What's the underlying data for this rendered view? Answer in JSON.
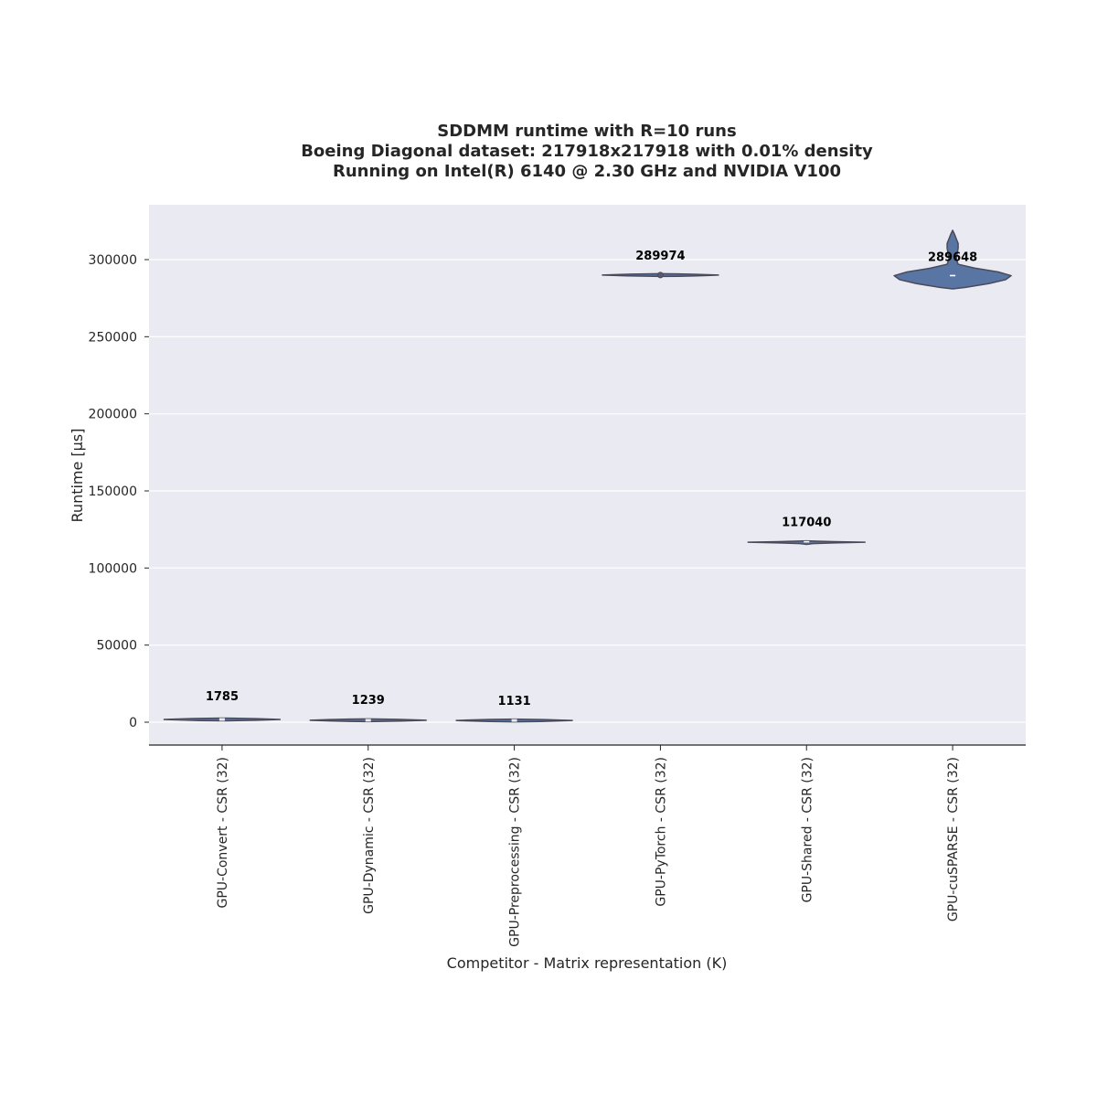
{
  "chart_data": {
    "type": "violin",
    "title_lines": [
      "SDDMM runtime with R=10 runs",
      "Boeing Diagonal dataset: 217918x217918 with 0.01% density",
      "Running on Intel(R) 6140 @ 2.30 GHz and NVIDIA V100"
    ],
    "xlabel": "Competitor - Matrix representation (K)",
    "ylabel": "Runtime [µs]",
    "ylim": [
      -15000,
      335000
    ],
    "yticks": [
      0,
      50000,
      100000,
      150000,
      200000,
      250000,
      300000
    ],
    "ytick_labels": [
      "0",
      "50000",
      "100000",
      "150000",
      "200000",
      "250000",
      "300000"
    ],
    "grid": true,
    "colors": {
      "plot_bg": "#eaeaf2",
      "violin_fill": "#5975a4",
      "violin_edge": "#4a4a5a",
      "grid": "#ffffff"
    },
    "categories": [
      "GPU-Convert - CSR (32)",
      "GPU-Dynamic - CSR (32)",
      "GPU-Preprocessing - CSR (32)",
      "GPU-PyTorch - CSR (32)",
      "GPU-Shared - CSR (32)",
      "GPU-cuSPARSE - CSR (32)"
    ],
    "medians": [
      1785,
      1239,
      1131,
      289974,
      117040,
      289648
    ],
    "median_labels": [
      "1785",
      "1239",
      "1131",
      "289974",
      "117040",
      "289648"
    ],
    "ranges": [
      [
        1700,
        1870
      ],
      [
        1180,
        1300
      ],
      [
        1080,
        1190
      ],
      [
        289500,
        290600
      ],
      [
        115300,
        117600
      ],
      [
        281000,
        319000
      ]
    ]
  }
}
